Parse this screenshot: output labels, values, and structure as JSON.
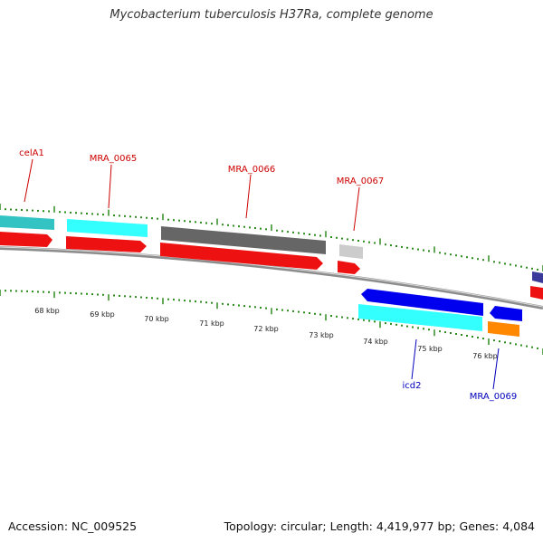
{
  "title": "Mycobacterium tuberculosis H37Ra, complete genome",
  "footer": {
    "accession": "Accession: NC_009525",
    "summary": "Topology: circular; Length: 4,419,977 bp; Genes: 4,084"
  },
  "colors": {
    "backbone": "#8c8c8c",
    "tick": "#2d8a1e",
    "forward_label": "#cc0000",
    "reverse_label": "#0000bb",
    "cds": "#ee1111",
    "gene_cyan": "#33ffff",
    "gene_teal": "#33c3c3",
    "gene_gray": "#666666",
    "gene_lightgray": "#cccccc",
    "gene_blue": "#0000ee",
    "gene_orange": "#ff8800"
  },
  "scale_labels": [
    "68 kbp",
    "69 kbp",
    "70 kbp",
    "71 kbp",
    "72 kbp",
    "73 kbp",
    "74 kbp",
    "75 kbp",
    "76 kbp"
  ],
  "forward_genes": [
    {
      "label": "celA1",
      "color": "#33c3c3"
    },
    {
      "label": "MRA_0065",
      "color": "#33ffff"
    },
    {
      "label": "MRA_0066",
      "color": "#666666"
    },
    {
      "label": "MRA_0067",
      "color": "#cccccc"
    }
  ],
  "reverse_genes": [
    {
      "label": "icd2",
      "color": "#33ffff"
    },
    {
      "label": "MRA_0069",
      "color": "#ff8800"
    }
  ]
}
